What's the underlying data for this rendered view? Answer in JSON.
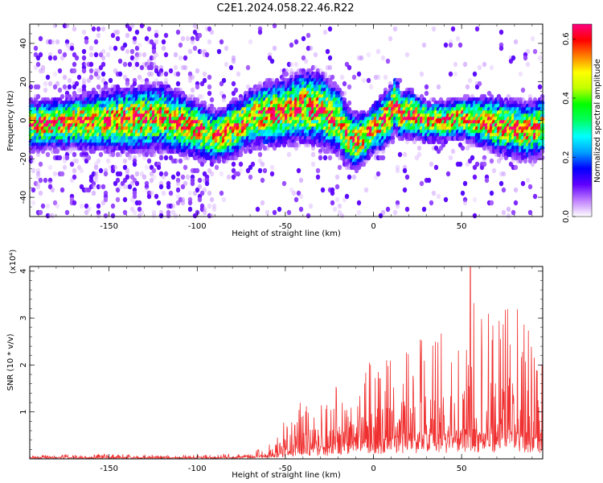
{
  "title": "C2E1.2024.058.22.46.R22",
  "chart_data": [
    {
      "type": "heatmap",
      "xlabel": "Height of straight line (km)",
      "ylabel": "Frequency (Hz)",
      "xlim": [
        -195,
        96
      ],
      "ylim": [
        -50,
        50
      ],
      "x_ticks": [
        -150,
        -100,
        -50,
        0,
        50
      ],
      "y_ticks": [
        -40,
        -20,
        0,
        20,
        40
      ],
      "colorbar": {
        "label": "Normalized spectral amplitude",
        "range": [
          0.0,
          0.65
        ],
        "ticks": [
          0.0,
          0.2,
          0.4,
          0.6
        ],
        "colors": [
          "#ffffff",
          "#c080ff",
          "#6000ff",
          "#0000ff",
          "#00a0ff",
          "#00ffff",
          "#00ff60",
          "#00ff00",
          "#c0ff00",
          "#ffff00",
          "#ff8000",
          "#ff0000",
          "#ff0080"
        ]
      },
      "ridge": {
        "x": [
          -195,
          -180,
          -160,
          -140,
          -120,
          -100,
          -90,
          -80,
          -70,
          -60,
          -50,
          -40,
          -30,
          -20,
          -15,
          -10,
          -5,
          0,
          5,
          10,
          12,
          15,
          20,
          30,
          40,
          50,
          60,
          70,
          80,
          90,
          96
        ],
        "center_freq": [
          -2,
          -1,
          0,
          1,
          2,
          -4,
          -8,
          -4,
          2,
          4,
          5,
          8,
          6,
          0,
          -8,
          -10,
          -8,
          -3,
          0,
          5,
          10,
          3,
          4,
          0,
          0,
          2,
          0,
          -2,
          -4,
          -5,
          -2
        ],
        "width": [
          6,
          6,
          7,
          8,
          8,
          7,
          6,
          7,
          7,
          8,
          8,
          9,
          9,
          8,
          7,
          7,
          6,
          6,
          7,
          7,
          7,
          6,
          6,
          5,
          5,
          5,
          6,
          7,
          7,
          7,
          7
        ]
      },
      "peak": {
        "x": 37,
        "y": 0,
        "value": 0.6
      }
    },
    {
      "type": "line",
      "xlabel": "Height of straight line (km)",
      "ylabel": "SNR (10 * v/v)",
      "multiplier": "(x10⁴)",
      "xlim": [
        -195,
        96
      ],
      "ylim": [
        0,
        4.1
      ],
      "x_ticks": [
        -150,
        -100,
        -50,
        0,
        50
      ],
      "y_ticks": [
        1,
        2,
        3,
        4
      ],
      "color": "#f03030",
      "envelope": {
        "x": [
          -195,
          -150,
          -100,
          -70,
          -60,
          -50,
          -40,
          -30,
          -20,
          -10,
          0,
          10,
          20,
          30,
          40,
          50,
          55,
          60,
          70,
          80,
          90,
          96
        ],
        "max": [
          0.08,
          0.1,
          0.08,
          0.12,
          0.3,
          0.9,
          1.3,
          1.2,
          1.6,
          1.7,
          2.2,
          2.1,
          2.6,
          2.8,
          2.7,
          3.2,
          4.1,
          3.3,
          3.4,
          3.3,
          2.6,
          2.3
        ],
        "base": [
          0.02,
          0.02,
          0.02,
          0.03,
          0.06,
          0.15,
          0.2,
          0.2,
          0.25,
          0.3,
          0.3,
          0.35,
          0.4,
          0.4,
          0.4,
          0.45,
          0.5,
          0.45,
          0.45,
          0.45,
          0.4,
          0.4
        ]
      }
    }
  ]
}
